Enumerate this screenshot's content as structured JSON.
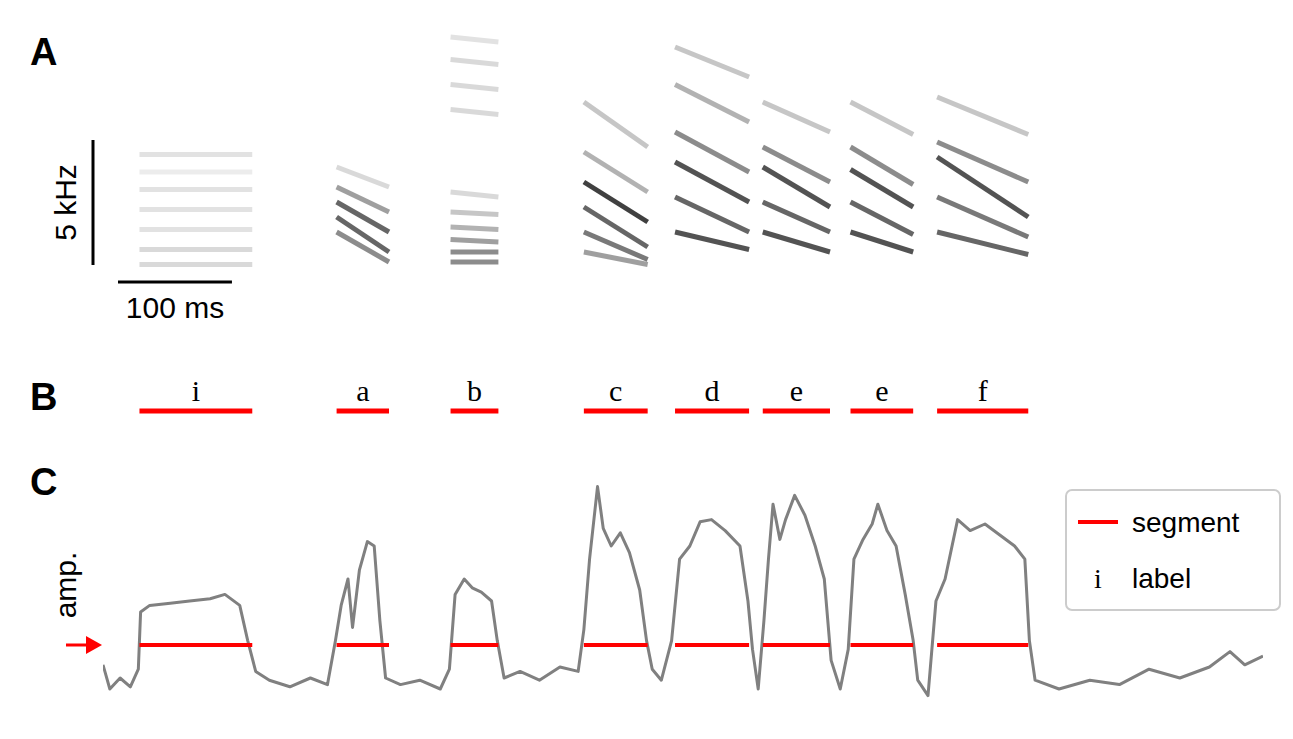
{
  "chart_data": [
    {
      "panel": "A",
      "type": "spectrogram",
      "xlim": [
        0,
        1018
      ],
      "ylim": [
        0,
        10
      ],
      "tick_labels": false,
      "color": "#000000",
      "scale_bars": [
        {
          "axis": "x",
          "value": 100,
          "label": "100 ms"
        },
        {
          "axis": "y",
          "value": 5,
          "label": "5 kHz"
        }
      ],
      "syllables": [
        {
          "onset": 32,
          "offset": 131,
          "harmonics": [
            {
              "f": [
                0.3,
                0.3
              ],
              "power": 0.2
            },
            {
              "f": [
                0.9,
                0.9
              ],
              "power": 0.2
            },
            {
              "f": [
                1.7,
                1.7
              ],
              "power": 0.15
            },
            {
              "f": [
                2.5,
                2.5
              ],
              "power": 0.15
            },
            {
              "f": [
                3.3,
                3.3
              ],
              "power": 0.15
            },
            {
              "f": [
                4.0,
                4.0
              ],
              "power": 0.1
            },
            {
              "f": [
                4.7,
                4.7
              ],
              "power": 0.15
            }
          ]
        },
        {
          "onset": 205,
          "offset": 251,
          "harmonics": [
            {
              "f": [
                4.2,
                3.4
              ],
              "power": 0.2
            },
            {
              "f": [
                3.4,
                2.4
              ],
              "power": 0.5
            },
            {
              "f": [
                2.8,
                1.6
              ],
              "power": 0.8
            },
            {
              "f": [
                2.2,
                0.8
              ],
              "power": 0.8
            },
            {
              "f": [
                1.6,
                0.4
              ],
              "power": 0.6
            }
          ]
        },
        {
          "onset": 305,
          "offset": 347,
          "harmonics": [
            {
              "f": [
                0.4,
                0.4
              ],
              "power": 0.6
            },
            {
              "f": [
                0.8,
                0.8
              ],
              "power": 0.6
            },
            {
              "f": [
                1.3,
                1.2
              ],
              "power": 0.5
            },
            {
              "f": [
                1.8,
                1.7
              ],
              "power": 0.4
            },
            {
              "f": [
                2.4,
                2.3
              ],
              "power": 0.3
            },
            {
              "f": [
                3.2,
                3.0
              ],
              "power": 0.2
            },
            {
              "f": [
                6.5,
                6.3
              ],
              "power": 0.2
            },
            {
              "f": [
                7.5,
                7.3
              ],
              "power": 0.2
            },
            {
              "f": [
                8.5,
                8.3
              ],
              "power": 0.2
            },
            {
              "f": [
                9.4,
                9.2
              ],
              "power": 0.15
            }
          ]
        },
        {
          "onset": 422,
          "offset": 478,
          "harmonics": [
            {
              "f": [
                0.8,
                0.3
              ],
              "power": 0.5
            },
            {
              "f": [
                1.6,
                0.5
              ],
              "power": 0.7
            },
            {
              "f": [
                2.6,
                1.0
              ],
              "power": 0.8
            },
            {
              "f": [
                3.6,
                2.0
              ],
              "power": 1.0
            },
            {
              "f": [
                4.8,
                3.2
              ],
              "power": 0.4
            },
            {
              "f": [
                6.8,
                5.0
              ],
              "power": 0.3
            }
          ]
        },
        {
          "onset": 502,
          "offset": 567,
          "harmonics": [
            {
              "f": [
                1.6,
                0.9
              ],
              "power": 0.9
            },
            {
              "f": [
                3.0,
                1.6
              ],
              "power": 0.8
            },
            {
              "f": [
                4.4,
                2.8
              ],
              "power": 0.9
            },
            {
              "f": [
                5.6,
                4.0
              ],
              "power": 0.6
            },
            {
              "f": [
                7.5,
                6.0
              ],
              "power": 0.4
            },
            {
              "f": [
                9.0,
                7.8
              ],
              "power": 0.3
            }
          ]
        },
        {
          "onset": 579,
          "offset": 638,
          "harmonics": [
            {
              "f": [
                1.6,
                0.8
              ],
              "power": 0.9
            },
            {
              "f": [
                2.8,
                1.6
              ],
              "power": 0.8
            },
            {
              "f": [
                4.2,
                2.6
              ],
              "power": 0.9
            },
            {
              "f": [
                5.0,
                3.6
              ],
              "power": 0.6
            },
            {
              "f": [
                6.8,
                5.6
              ],
              "power": 0.3
            }
          ]
        },
        {
          "onset": 656,
          "offset": 711,
          "harmonics": [
            {
              "f": [
                1.6,
                0.8
              ],
              "power": 0.9
            },
            {
              "f": [
                2.8,
                1.5
              ],
              "power": 0.8
            },
            {
              "f": [
                4.1,
                2.6
              ],
              "power": 0.9
            },
            {
              "f": [
                5.0,
                3.5
              ],
              "power": 0.6
            },
            {
              "f": [
                6.8,
                5.5
              ],
              "power": 0.3
            }
          ]
        },
        {
          "onset": 732,
          "offset": 812,
          "harmonics": [
            {
              "f": [
                1.6,
                0.7
              ],
              "power": 0.8
            },
            {
              "f": [
                3.0,
                1.4
              ],
              "power": 0.7
            },
            {
              "f": [
                4.6,
                2.2
              ],
              "power": 0.9
            },
            {
              "f": [
                5.2,
                3.6
              ],
              "power": 0.6
            },
            {
              "f": [
                7.0,
                5.5
              ],
              "power": 0.3
            }
          ]
        }
      ]
    },
    {
      "panel": "B",
      "type": "segments",
      "xlim": [
        0,
        1018
      ],
      "color": "#ff0000",
      "onsets": [
        32,
        205,
        305,
        422,
        502,
        579,
        656,
        732
      ],
      "offsets": [
        131,
        251,
        347,
        478,
        567,
        638,
        711,
        812
      ],
      "labels": [
        "i",
        "a",
        "b",
        "c",
        "d",
        "e",
        "e",
        "f"
      ]
    },
    {
      "panel": "C",
      "type": "line",
      "xlim": [
        0,
        1018
      ],
      "ylim": [
        0,
        1
      ],
      "tick_labels": false,
      "ylabel": "amp.",
      "threshold": 0.25,
      "color": "#808080",
      "x": [
        0,
        6,
        15,
        24,
        31,
        33,
        41,
        59,
        76,
        94,
        107,
        120,
        127,
        134,
        146,
        164,
        182,
        197,
        204,
        209,
        215,
        219,
        225,
        232,
        238,
        243,
        248,
        261,
        278,
        296,
        304,
        309,
        317,
        324,
        332,
        341,
        346,
        352,
        366,
        383,
        401,
        417,
        422,
        427,
        434,
        439,
        446,
        454,
        462,
        471,
        477,
        482,
        490,
        499,
        506,
        515,
        524,
        534,
        546,
        559,
        566,
        570,
        575,
        580,
        584,
        588,
        594,
        599,
        607,
        616,
        625,
        633,
        639,
        647,
        654,
        659,
        667,
        675,
        680,
        688,
        696,
        704,
        711,
        715,
        724,
        731,
        739,
        750,
        761,
        774,
        787,
        800,
        809,
        813,
        818,
        839,
        866,
        892,
        918,
        945,
        971,
        989,
        1002,
        1018
      ],
      "values": [
        0.16,
        0.05,
        0.1,
        0.06,
        0.14,
        0.4,
        0.43,
        0.44,
        0.45,
        0.46,
        0.48,
        0.43,
        0.27,
        0.13,
        0.09,
        0.06,
        0.1,
        0.07,
        0.27,
        0.43,
        0.55,
        0.33,
        0.59,
        0.72,
        0.7,
        0.36,
        0.1,
        0.07,
        0.09,
        0.05,
        0.14,
        0.48,
        0.55,
        0.51,
        0.49,
        0.45,
        0.27,
        0.1,
        0.13,
        0.09,
        0.15,
        0.13,
        0.32,
        0.64,
        0.97,
        0.78,
        0.7,
        0.76,
        0.67,
        0.5,
        0.27,
        0.14,
        0.09,
        0.27,
        0.64,
        0.7,
        0.81,
        0.82,
        0.77,
        0.7,
        0.45,
        0.23,
        0.05,
        0.36,
        0.64,
        0.89,
        0.73,
        0.82,
        0.93,
        0.84,
        0.7,
        0.55,
        0.18,
        0.05,
        0.23,
        0.64,
        0.73,
        0.8,
        0.89,
        0.77,
        0.7,
        0.48,
        0.27,
        0.09,
        0.02,
        0.45,
        0.55,
        0.82,
        0.77,
        0.8,
        0.75,
        0.7,
        0.64,
        0.27,
        0.09,
        0.05,
        0.09,
        0.07,
        0.14,
        0.1,
        0.15,
        0.22,
        0.16,
        0.2
      ],
      "legend": "upper right",
      "legend_entries": [
        {
          "name": "segment",
          "color": "#ff0000",
          "marker": "line"
        },
        {
          "name": "label",
          "symbol": "i"
        }
      ]
    }
  ]
}
